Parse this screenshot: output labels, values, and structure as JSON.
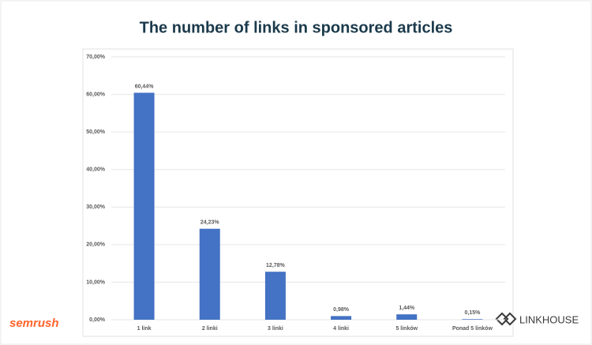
{
  "chart_data": {
    "type": "bar",
    "title": "The number of links in sponsored articles",
    "categories": [
      "1 link",
      "2 linki",
      "3 linki",
      "4 linki",
      "5 linków",
      "Ponad 5 linków"
    ],
    "values": [
      60.44,
      24.23,
      12.78,
      0.98,
      1.44,
      0.15
    ],
    "value_labels": [
      "60,44%",
      "24,23%",
      "12,78%",
      "0,98%",
      "1,44%",
      "0,15%"
    ],
    "color": "#4472c4",
    "ylim": [
      0,
      70
    ],
    "yticks": [
      {
        "value": 0,
        "label": "0,00%"
      },
      {
        "value": 10,
        "label": "10,00%"
      },
      {
        "value": 20,
        "label": "20,00%"
      },
      {
        "value": 30,
        "label": "30,00%"
      },
      {
        "value": 40,
        "label": "40,00%"
      },
      {
        "value": 50,
        "label": "50,00%"
      },
      {
        "value": 60,
        "label": "60,00%"
      },
      {
        "value": 70,
        "label": "70,00%"
      }
    ],
    "grid": true
  },
  "logos": {
    "left": "semrush",
    "right": "LINKHOUSE"
  }
}
